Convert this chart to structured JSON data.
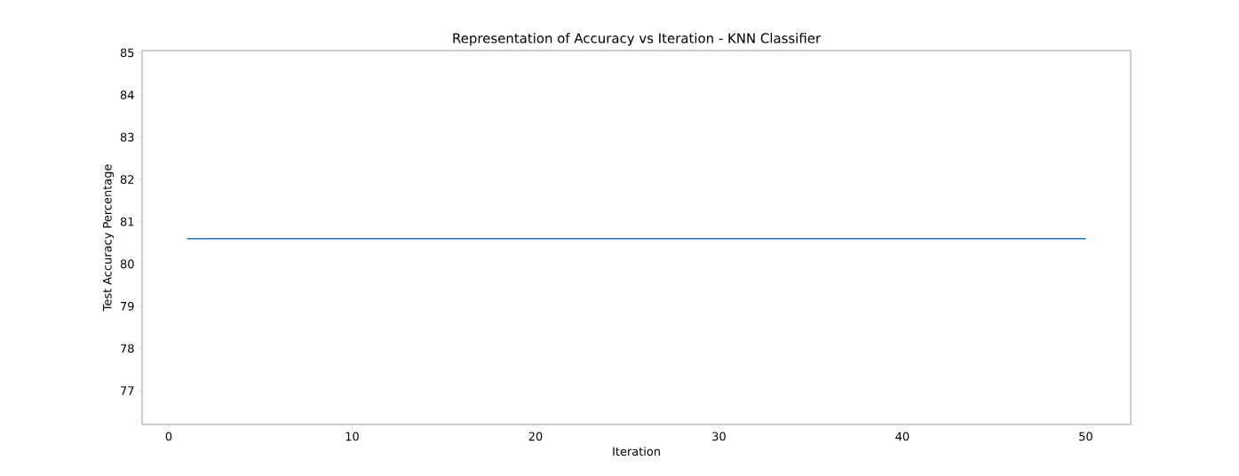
{
  "chart_data": {
    "type": "line",
    "title": "Representation of Accuracy vs Iteration - KNN Classifier",
    "xlabel": "Iteration",
    "ylabel": "Test Accuracy Percentage",
    "x": [
      1,
      50
    ],
    "series": [
      {
        "color": "#1f77b4",
        "values": [
          80.6,
          80.6
        ]
      }
    ],
    "xlim": [
      -1.45,
      52.45
    ],
    "ylim": [
      76.2,
      85.05
    ],
    "xticks": [
      0,
      10,
      20,
      30,
      40,
      50
    ],
    "yticks": [
      77,
      78,
      79,
      80,
      81,
      82,
      83,
      84,
      85
    ]
  }
}
